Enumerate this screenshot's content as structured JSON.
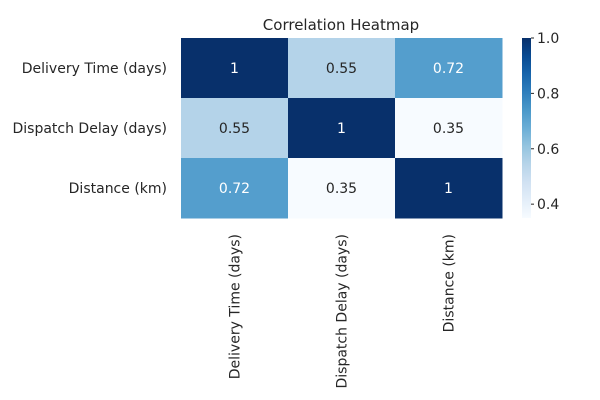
{
  "chart_data": {
    "type": "heatmap",
    "title": "Correlation Heatmap",
    "x_categories": [
      "Delivery Time (days)",
      "Dispatch Delay (days)",
      "Distance (km)"
    ],
    "y_categories": [
      "Delivery Time (days)",
      "Dispatch Delay (days)",
      "Distance (km)"
    ],
    "values": [
      [
        1,
        0.55,
        0.72
      ],
      [
        0.55,
        1,
        0.35
      ],
      [
        0.72,
        0.35,
        1
      ]
    ],
    "annotations": [
      [
        "1",
        "0.55",
        "0.72"
      ],
      [
        "0.55",
        "1",
        "0.35"
      ],
      [
        "0.72",
        "0.35",
        "1"
      ]
    ],
    "colormap": "Blues",
    "color_range": [
      0.35,
      1.0
    ],
    "colorbar_ticks": [
      "0.4",
      "0.6",
      "0.8",
      "1.0"
    ],
    "colorbar_tick_values": [
      0.4,
      0.6,
      0.8,
      1.0
    ],
    "colorbar_position": "right",
    "x_tick_rotation": "vertical",
    "grid": false,
    "xlabel": "",
    "ylabel": ""
  },
  "colors": {
    "text_dark": "#262626",
    "text_light": "#ffffff",
    "background": "#ffffff"
  }
}
